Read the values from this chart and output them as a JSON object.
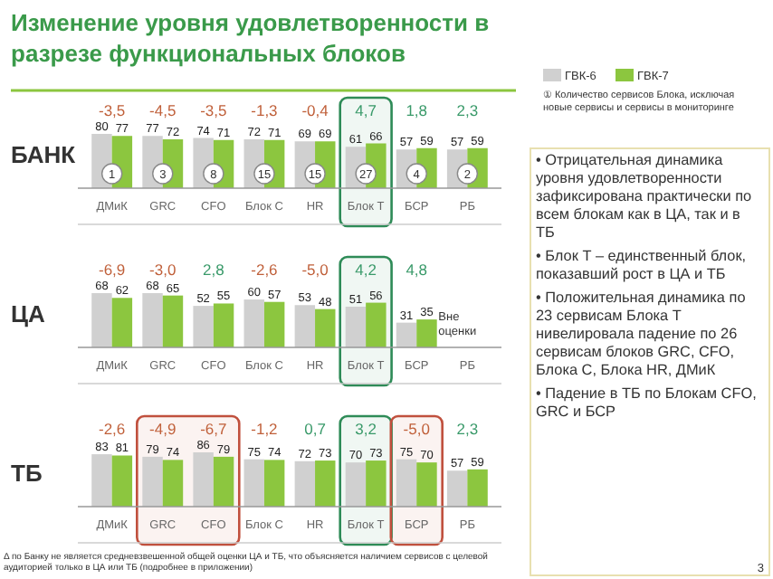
{
  "chart_data": [
    {
      "type": "bar",
      "title": "Изменение уровня удовлетворенности в разрезе функциональных блоков",
      "ylabel": "БАНК",
      "categories": [
        "ДМиК",
        "GRC",
        "CFO",
        "Блок С",
        "HR",
        "Блок Т",
        "БСР",
        "РБ"
      ],
      "data_labels": true,
      "legend": "top right",
      "series": [
        {
          "name": "ГВК-6",
          "color": "#d0d0d0",
          "values": [
            80,
            77,
            74,
            72,
            69,
            61,
            57,
            57
          ]
        },
        {
          "name": "ГВК-7",
          "color": "#8cc63f",
          "values": [
            77,
            72,
            71,
            71,
            69,
            66,
            59,
            59
          ]
        }
      ],
      "bands": [
        {
          "axis": "x",
          "from": "Блок Т",
          "to": "Блок Т",
          "color": "#2e8b57"
        }
      ],
      "annotations": [
        "-3,5",
        "-4,5",
        "-3,5",
        "-1,3",
        "-0,4",
        "4,7",
        "1,8",
        "2,3",
        "1",
        "3",
        "8",
        "15",
        "15",
        "27",
        "4",
        "2",
        "① Количество сервисов Блока, исключая новые сервисы и сервисы в мониторинге"
      ]
    },
    {
      "type": "bar",
      "ylabel": "ЦА",
      "categories": [
        "ДМиК",
        "GRC",
        "CFO",
        "Блок С",
        "HR",
        "Блок Т",
        "БСР",
        "РБ"
      ],
      "data_labels": true,
      "series": [
        {
          "color": "#d0d0d0",
          "values": [
            68,
            68,
            52,
            60,
            53,
            51,
            31,
            null
          ]
        },
        {
          "color": "#8cc63f",
          "values": [
            62,
            65,
            55,
            57,
            48,
            56,
            35,
            null
          ]
        }
      ],
      "bands": [
        {
          "axis": "x",
          "from": "Блок Т",
          "to": "Блок Т",
          "color": "#2e8b57"
        }
      ],
      "annotations": [
        "-6,9",
        "-3,0",
        "2,8",
        "-2,6",
        "-5,0",
        "4,2",
        "4,8",
        "Вне оценки"
      ]
    },
    {
      "type": "bar",
      "ylabel": "ТБ",
      "categories": [
        "ДМиК",
        "GRC",
        "CFO",
        "Блок С",
        "HR",
        "Блок Т",
        "БСР",
        "РБ"
      ],
      "data_labels": true,
      "series": [
        {
          "color": "#d0d0d0",
          "values": [
            83,
            79,
            86,
            75,
            72,
            70,
            75,
            57
          ]
        },
        {
          "color": "#8cc63f",
          "values": [
            81,
            74,
            79,
            74,
            73,
            73,
            70,
            59
          ]
        }
      ],
      "bands": [
        {
          "axis": "x",
          "from": "GRC",
          "to": "CFO",
          "color": "#c0503d"
        },
        {
          "axis": "x",
          "from": "Блок Т",
          "to": "Блок Т",
          "color": "#2e8b57"
        },
        {
          "axis": "x",
          "from": "БСР",
          "to": "БСР",
          "color": "#c0503d"
        }
      ],
      "annotations": [
        "-2,6",
        "-4,9",
        "-6,7",
        "-1,2",
        "0,7",
        "3,2",
        "-5,0",
        "2,3"
      ]
    },
    {
      "type": "other",
      "annotations": [
        "• Отрицательная динамика уровня удовлетворенности зафиксирована практически по всем блокам как в ЦА, так и в ТБ",
        "• Блок Т – единственный блок, показавший рост в ЦА и ТБ",
        "• Положительная динамика по 23 сервисам Блока Т нивелировала падение по 26 сервисам блоков GRC, CFO, Блока С, Блока HR, ДМиК",
        "• Падение в ТБ по Блокам CFO, GRC и БСР",
        "Δ по Банку не является средневзвешенной общей оценки ЦА и ТБ, что объясняется наличием сервисов с целевой аудиторией только в ЦА или ТБ (подробнее в приложении)",
        "3"
      ]
    }
  ]
}
